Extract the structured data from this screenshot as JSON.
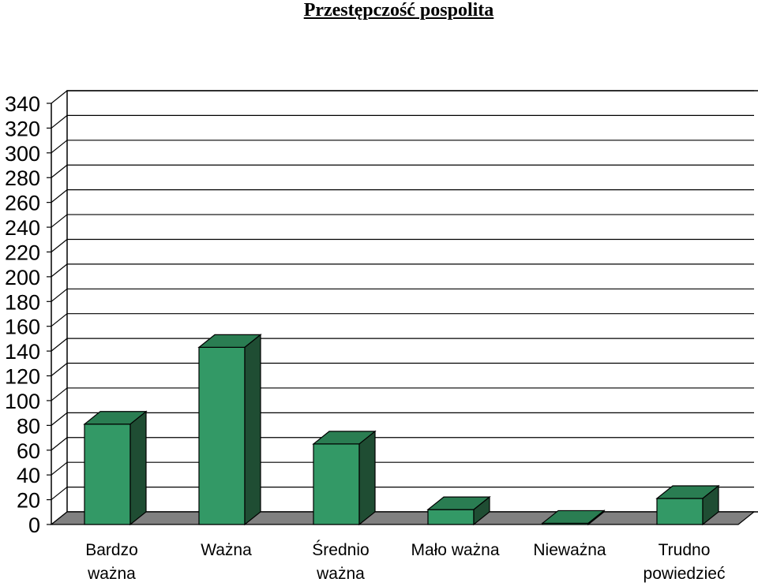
{
  "chart_data": {
    "type": "bar",
    "title": "Przestępczość pospolita",
    "categories": [
      [
        "Bardzo",
        "ważna"
      ],
      [
        "Ważna"
      ],
      [
        "Średnio",
        "ważna"
      ],
      [
        "Mało ważna"
      ],
      [
        "Nieważna"
      ],
      [
        "Trudno",
        "powiedzieć"
      ]
    ],
    "values": [
      81,
      143,
      65,
      12,
      1,
      21
    ],
    "ylim": [
      0,
      340
    ],
    "yticks": [
      0,
      20,
      40,
      60,
      80,
      100,
      120,
      140,
      160,
      180,
      200,
      220,
      240,
      260,
      280,
      300,
      320,
      340
    ],
    "grid": true,
    "legend": "none",
    "colors": {
      "bar_front": "#339966",
      "bar_top": "#2a7d52",
      "bar_side": "#1f4d33",
      "floor": "#808080",
      "grid": "#000000"
    }
  }
}
